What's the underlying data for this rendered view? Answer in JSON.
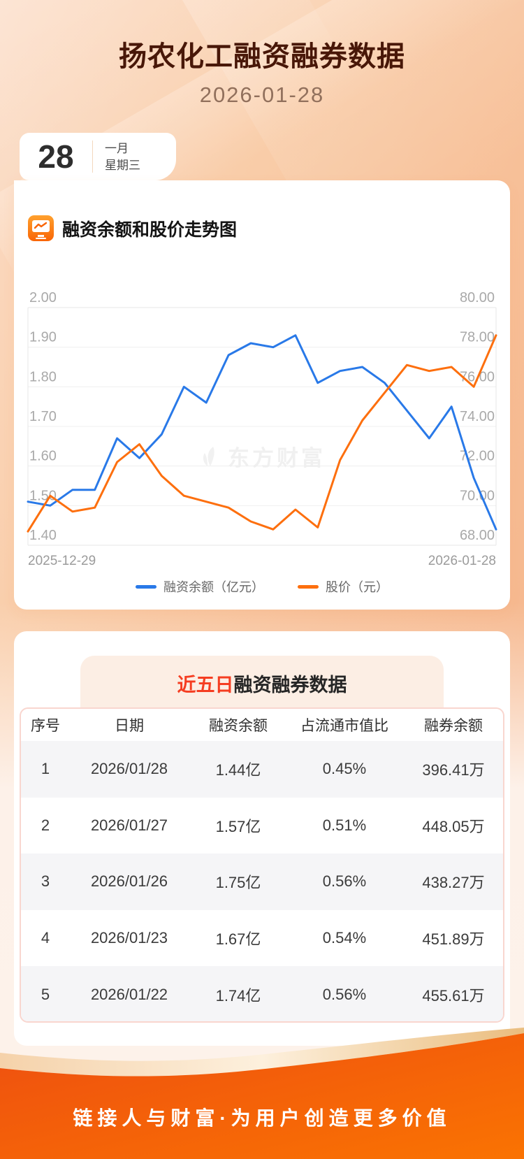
{
  "page": {
    "title": "扬农化工融资融券数据",
    "date": "2026-01-28",
    "watermark": "东方财富",
    "slogan": "链接人与财富·为用户创造更多价值"
  },
  "calendar": {
    "day": "28",
    "month": "一月",
    "weekday": "星期三"
  },
  "chart_section": {
    "title": "融资余额和股价走势图"
  },
  "chart_data": {
    "type": "line",
    "title": "融资余额和股价走势图",
    "x": [
      "2025-12-29",
      "2025-12-30",
      "2025-12-31",
      "2026-01-02",
      "2026-01-05",
      "2026-01-06",
      "2026-01-07",
      "2026-01-08",
      "2026-01-09",
      "2026-01-12",
      "2026-01-13",
      "2026-01-14",
      "2026-01-15",
      "2026-01-16",
      "2026-01-19",
      "2026-01-20",
      "2026-01-21",
      "2026-01-22",
      "2026-01-23",
      "2026-01-26",
      "2026-01-27",
      "2026-01-28"
    ],
    "x_axis_labels": [
      "2025-12-29",
      "2026-01-28"
    ],
    "series": [
      {
        "name": "融资余额（亿元）",
        "axis": "left",
        "color": "#2979e8",
        "values": [
          1.51,
          1.5,
          1.54,
          1.54,
          1.67,
          1.62,
          1.68,
          1.8,
          1.76,
          1.88,
          1.91,
          1.9,
          1.93,
          1.81,
          1.84,
          1.85,
          1.81,
          1.74,
          1.67,
          1.75,
          1.57,
          1.44
        ]
      },
      {
        "name": "股价（元）",
        "axis": "right",
        "color": "#fd6f0e",
        "values": [
          68.7,
          70.5,
          69.7,
          69.9,
          72.2,
          73.1,
          71.5,
          70.5,
          70.2,
          69.9,
          69.2,
          68.8,
          69.8,
          68.9,
          72.3,
          74.3,
          75.7,
          77.1,
          76.8,
          77.0,
          76.0,
          78.6
        ]
      }
    ],
    "left_axis": {
      "min": 1.4,
      "max": 2.0,
      "ticks": [
        "2.00",
        "1.90",
        "1.80",
        "1.70",
        "1.60",
        "1.50",
        "1.40"
      ]
    },
    "right_axis": {
      "min": 68.0,
      "max": 80.0,
      "ticks": [
        "80.00",
        "78.00",
        "76.00",
        "74.00",
        "72.00",
        "70.00",
        "68.00"
      ]
    },
    "grid": true,
    "legend_position": "bottom"
  },
  "table_section": {
    "title_highlight": "近五日",
    "title_rest": "融资融券数据",
    "headers": [
      "序号",
      "日期",
      "融资余额",
      "占流通市值比",
      "融券余额"
    ],
    "rows": [
      [
        "1",
        "2026/01/28",
        "1.44亿",
        "0.45%",
        "396.41万"
      ],
      [
        "2",
        "2026/01/27",
        "1.57亿",
        "0.51%",
        "448.05万"
      ],
      [
        "3",
        "2026/01/26",
        "1.75亿",
        "0.56%",
        "438.27万"
      ],
      [
        "4",
        "2026/01/23",
        "1.67亿",
        "0.54%",
        "451.89万"
      ],
      [
        "5",
        "2026/01/22",
        "1.74亿",
        "0.56%",
        "455.61万"
      ]
    ]
  },
  "colors": {
    "accent_orange": "#f5590b",
    "line_blue": "#2979e8",
    "line_orange": "#fd6f0e",
    "highlight_red": "#f53d21",
    "title_brown": "#481708"
  }
}
